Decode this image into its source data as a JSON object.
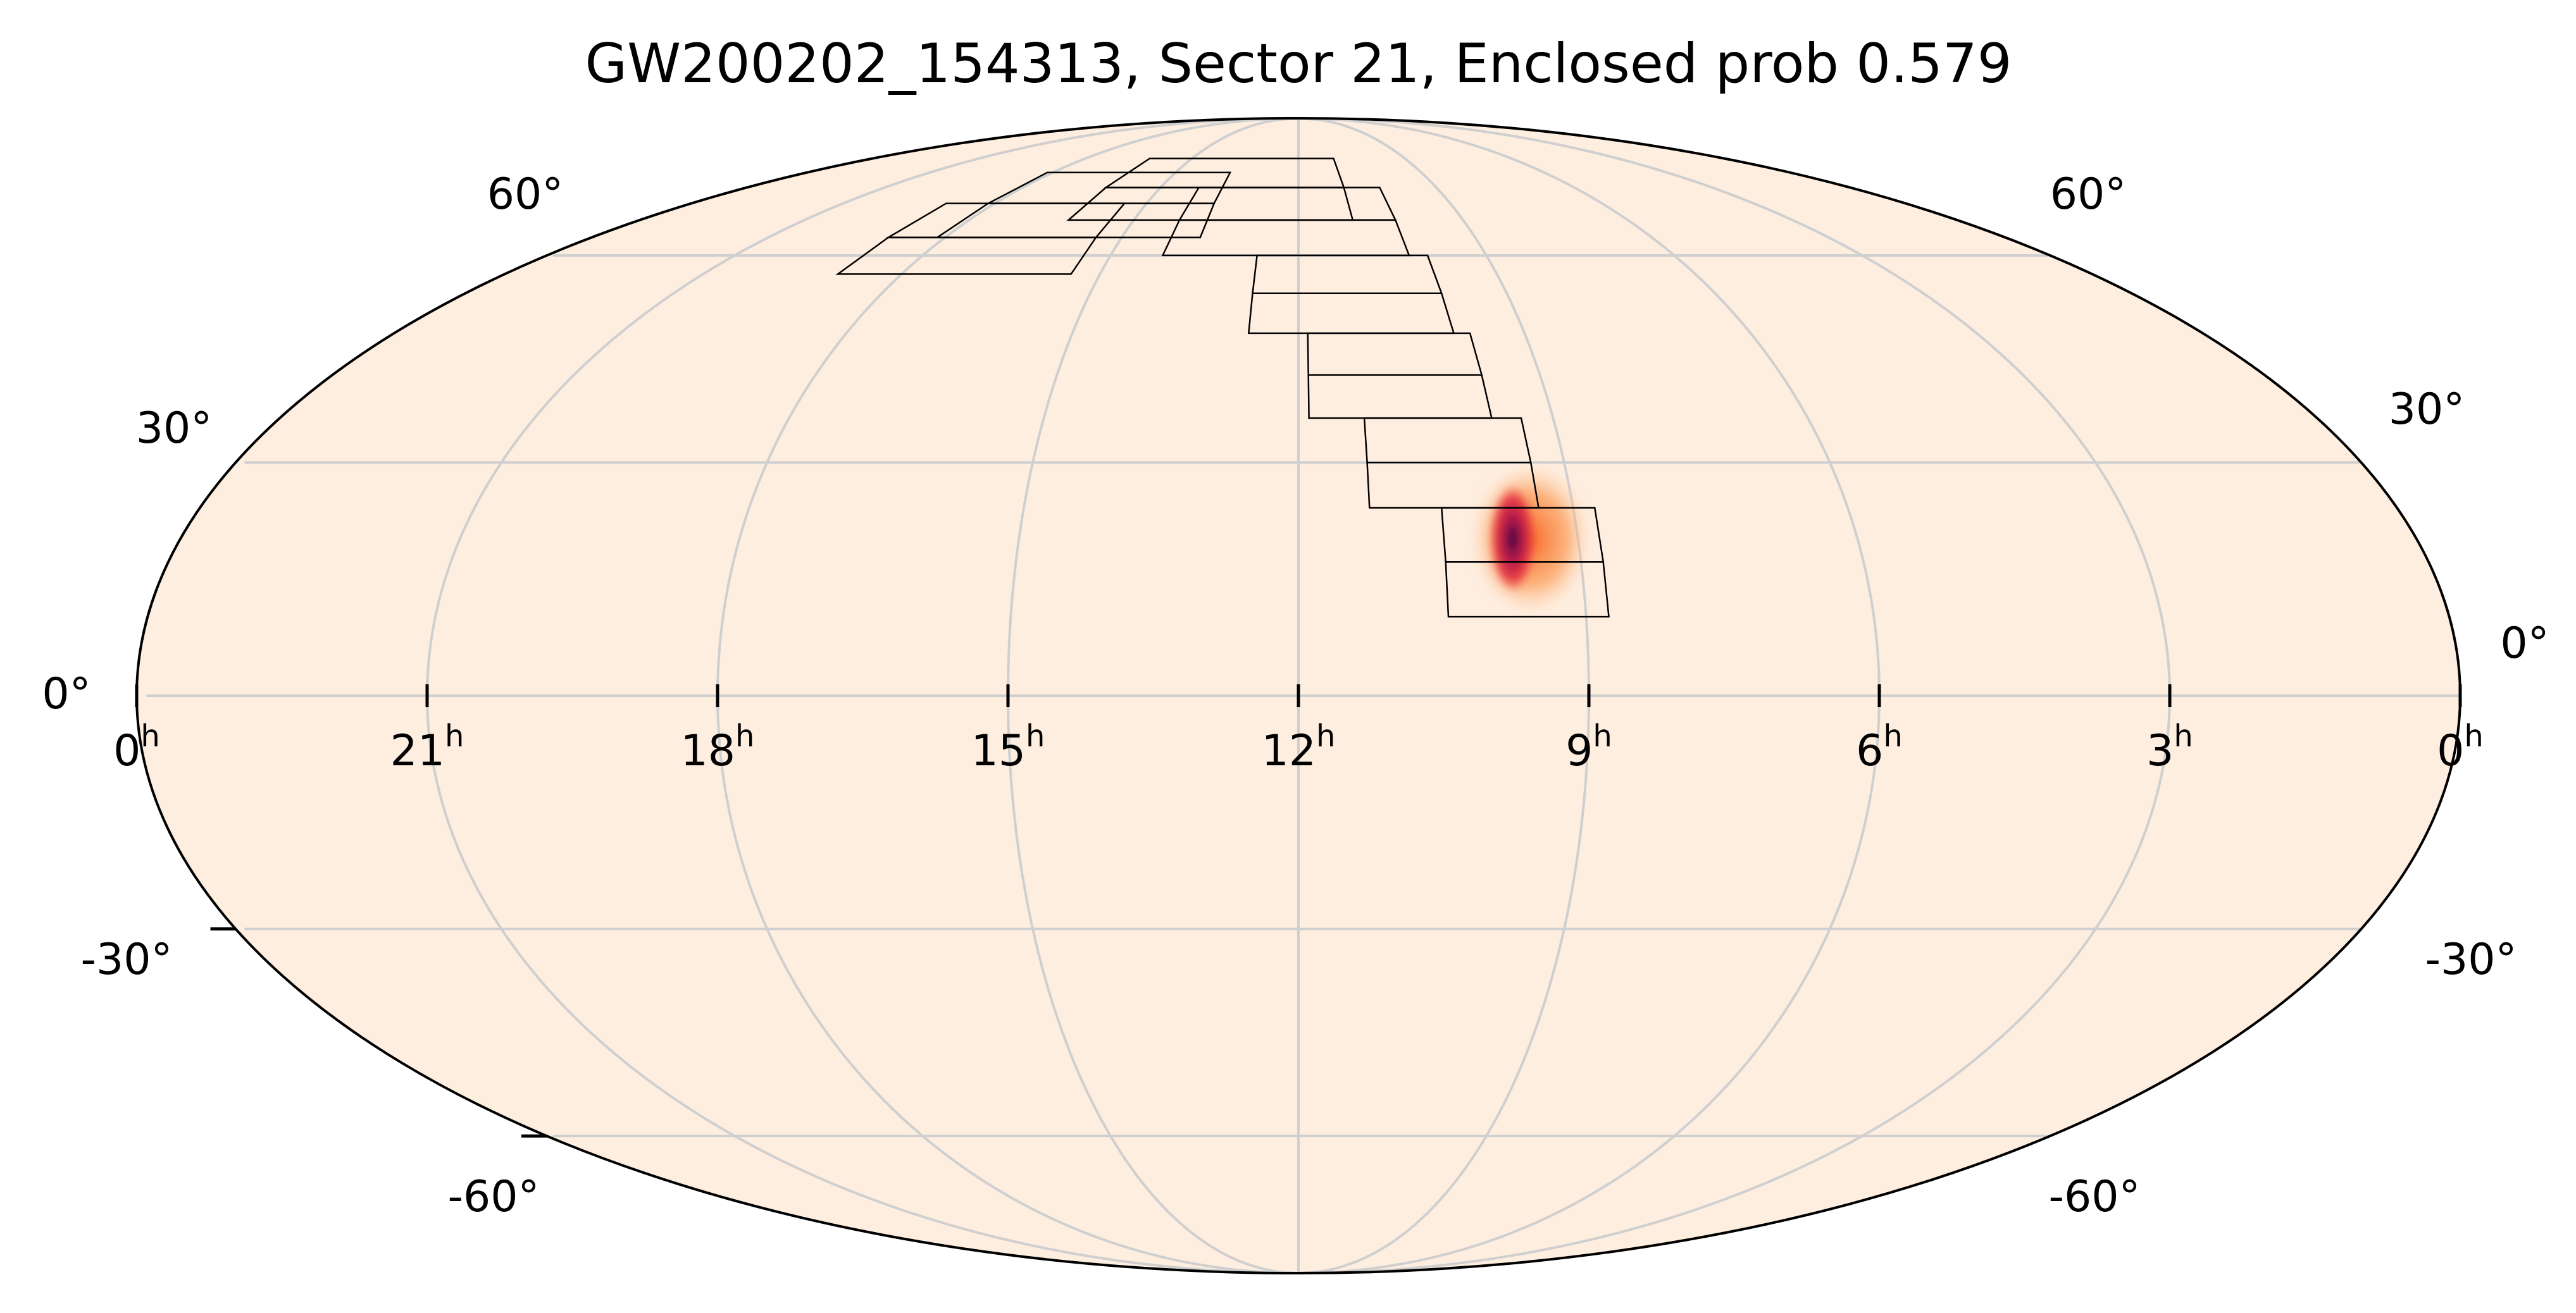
{
  "chart_data": {
    "type": "heatmap",
    "projection": "astro mollweide",
    "title": "GW200202_154313, Sector 21, Enclosed prob 0.579",
    "ra_tick_labels": [
      {
        "ra_hours": 24,
        "label": "0",
        "unit": "h"
      },
      {
        "ra_hours": 21,
        "label": "21",
        "unit": "h"
      },
      {
        "ra_hours": 18,
        "label": "18",
        "unit": "h"
      },
      {
        "ra_hours": 15,
        "label": "15",
        "unit": "h"
      },
      {
        "ra_hours": 12,
        "label": "12",
        "unit": "h"
      },
      {
        "ra_hours": 9,
        "label": "9",
        "unit": "h"
      },
      {
        "ra_hours": 6,
        "label": "6",
        "unit": "h"
      },
      {
        "ra_hours": 3,
        "label": "3",
        "unit": "h"
      },
      {
        "ra_hours": 0,
        "label": "0",
        "unit": "h"
      }
    ],
    "dec_tick_labels_left": [
      {
        "dec_deg": 60,
        "label": "60°"
      },
      {
        "dec_deg": 30,
        "label": "30°"
      },
      {
        "dec_deg": 0,
        "label": "0°"
      },
      {
        "dec_deg": -30,
        "label": "-30°"
      },
      {
        "dec_deg": -60,
        "label": "-60°"
      }
    ],
    "dec_tick_labels_right": [
      {
        "dec_deg": 60,
        "label": "60°"
      },
      {
        "dec_deg": 30,
        "label": "30°"
      },
      {
        "dec_deg": 0,
        "label": "0°"
      },
      {
        "dec_deg": -30,
        "label": "-30°"
      },
      {
        "dec_deg": -60,
        "label": "-60°"
      }
    ],
    "meridians_ra_hours": [
      21,
      18,
      15,
      12,
      9,
      6,
      3
    ],
    "parallels_dec_deg": [
      60,
      30,
      0,
      -30,
      -60
    ],
    "grid": true,
    "colormap": "inferno-like (peach to red to dark purple)",
    "background_color": "#feeee0",
    "probability_hotspot": {
      "ra_hours": 9.7,
      "dec_deg": 20,
      "extent_ra_hours": [
        9.2,
        10.3
      ],
      "extent_dec_deg": [
        10,
        30
      ]
    },
    "footprint_columns": [
      {
        "ra_hours": 9.6,
        "dec_range": [
          10,
          24
        ]
      },
      {
        "ra_hours": 10.3,
        "dec_range": [
          24,
          36
        ]
      },
      {
        "ra_hours": 10.8,
        "dec_range": [
          36,
          48
        ]
      },
      {
        "ra_hours": 11.3,
        "dec_range": [
          48,
          60
        ]
      },
      {
        "ra_hours": 12.2,
        "dec_range": [
          60,
          72
        ]
      },
      {
        "ra_hours": 13.6,
        "dec_range": [
          66,
          78
        ]
      },
      {
        "ra_hours": 15.9,
        "dec_range": [
          63,
          75
        ]
      },
      {
        "ra_hours": 17.2,
        "dec_range": [
          57,
          69
        ]
      }
    ]
  }
}
